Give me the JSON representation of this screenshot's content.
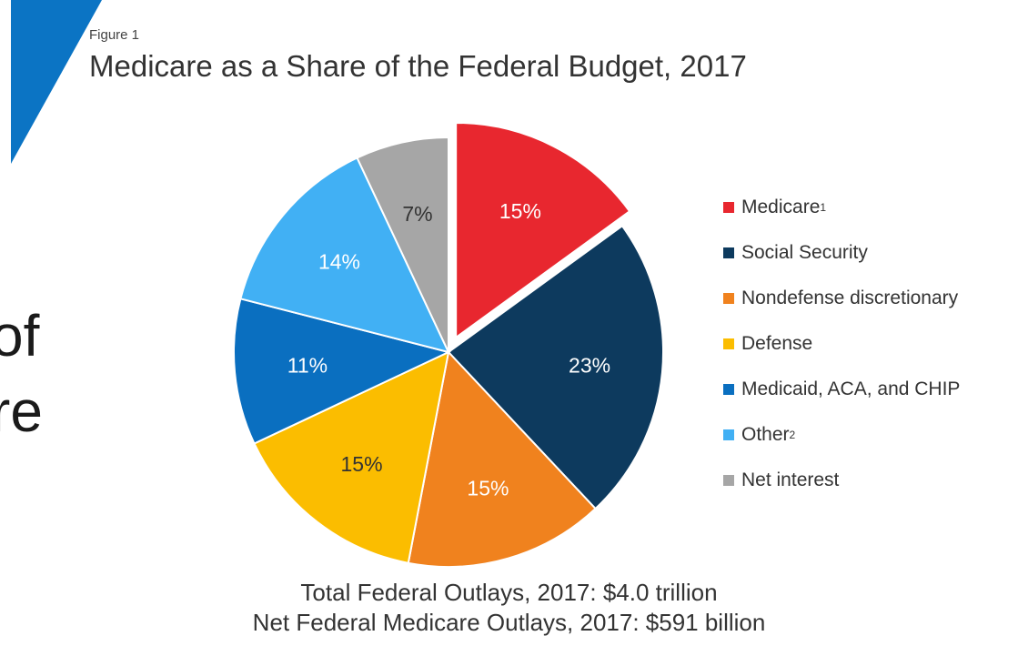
{
  "figure_label": "Figure 1",
  "title": "Medicare as a Share of the Federal Budget, 2017",
  "background_text": [
    "of",
    "re"
  ],
  "footer": {
    "line1": "Total Federal Outlays, 2017: $4.0 trillion",
    "line2": "Net Federal Medicare Outlays, 2017: $591 billion"
  },
  "colors": {
    "accent_wedge": "#0b74c4",
    "label_light": "#ffffff",
    "label_dark": "#333333"
  },
  "chart_data": {
    "type": "pie",
    "title": "Medicare as a Share of the Federal Budget, 2017",
    "legend_position": "right",
    "exploded": [
      "Medicare"
    ],
    "slices": [
      {
        "name": "Medicare",
        "superscript": "1",
        "value": 15,
        "label": "15%",
        "color": "#e8272f"
      },
      {
        "name": "Social Security",
        "superscript": "",
        "value": 23,
        "label": "23%",
        "color": "#0d3a5e"
      },
      {
        "name": "Nondefense discretionary",
        "superscript": "",
        "value": 15,
        "label": "15%",
        "color": "#f0821e"
      },
      {
        "name": "Defense",
        "superscript": "",
        "value": 15,
        "label": "15%",
        "color": "#fbbd00"
      },
      {
        "name": "Medicaid, ACA, and CHIP",
        "superscript": "",
        "value": 11,
        "label": "11%",
        "color": "#0a6fc0"
      },
      {
        "name": "Other",
        "superscript": "2",
        "value": 14,
        "label": "14%",
        "color": "#41b0f4"
      },
      {
        "name": "Net interest",
        "superscript": "",
        "value": 7,
        "label": "7%",
        "color": "#a6a6a6"
      }
    ]
  }
}
